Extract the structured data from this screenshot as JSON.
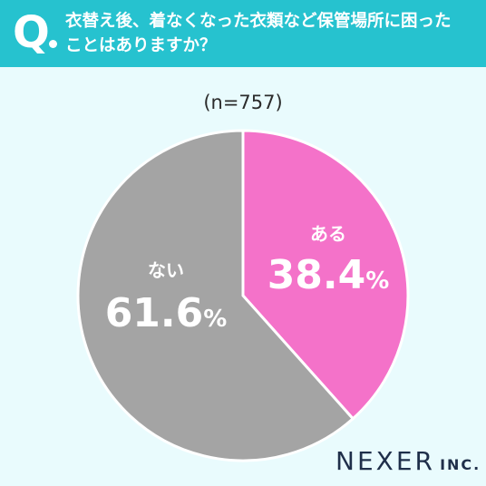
{
  "header": {
    "q_mark": "Q",
    "question": "衣替え後、着なくなった衣類など保管場所に困った\nことはありますか？"
  },
  "sample_label": "(n=757)",
  "chart_data": {
    "type": "pie",
    "slices": [
      {
        "label": "ある",
        "value": 38.4,
        "display": "38.4",
        "unit": "%",
        "color": "#f472c9"
      },
      {
        "label": "ない",
        "value": 61.6,
        "display": "61.6",
        "unit": "%",
        "color": "#a4a4a4"
      }
    ]
  },
  "logo": {
    "main": "NEXER",
    "sub": "INC."
  }
}
